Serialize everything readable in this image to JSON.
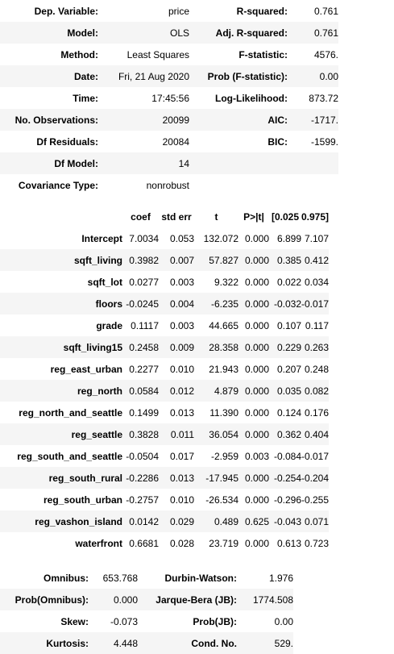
{
  "header_table": {
    "rows": [
      [
        {
          "label": "Dep. Variable:",
          "value": "price"
        },
        {
          "label": "R-squared:",
          "value": "0.761"
        }
      ],
      [
        {
          "label": "Model:",
          "value": "OLS"
        },
        {
          "label": "Adj. R-squared:",
          "value": "0.761"
        }
      ],
      [
        {
          "label": "Method:",
          "value": "Least Squares"
        },
        {
          "label": "F-statistic:",
          "value": "4576."
        }
      ],
      [
        {
          "label": "Date:",
          "value": "Fri, 21 Aug 2020"
        },
        {
          "label": "Prob (F-statistic):",
          "value": "0.00"
        }
      ],
      [
        {
          "label": "Time:",
          "value": "17:45:56"
        },
        {
          "label": "Log-Likelihood:",
          "value": "873.72"
        }
      ],
      [
        {
          "label": "No. Observations:",
          "value": "20099"
        },
        {
          "label": "AIC:",
          "value": "-1717."
        }
      ],
      [
        {
          "label": "Df Residuals:",
          "value": "20084"
        },
        {
          "label": "BIC:",
          "value": "-1599."
        }
      ],
      [
        {
          "label": "Df Model:",
          "value": "14"
        },
        {
          "label": "",
          "value": ""
        }
      ],
      [
        {
          "label": "Covariance Type:",
          "value": "nonrobust"
        },
        {
          "label": "",
          "value": ""
        }
      ]
    ]
  },
  "coef_table": {
    "headers": [
      "",
      "coef",
      "std err",
      "t",
      "P>|t|",
      "[0.025",
      "0.975]"
    ],
    "rows": [
      {
        "name": "Intercept",
        "values": [
          "7.0034",
          "0.053",
          "132.072",
          "0.000",
          "6.899",
          "7.107"
        ]
      },
      {
        "name": "sqft_living",
        "values": [
          "0.3982",
          "0.007",
          "57.827",
          "0.000",
          "0.385",
          "0.412"
        ]
      },
      {
        "name": "sqft_lot",
        "values": [
          "0.0277",
          "0.003",
          "9.322",
          "0.000",
          "0.022",
          "0.034"
        ]
      },
      {
        "name": "floors",
        "values": [
          "-0.0245",
          "0.004",
          "-6.235",
          "0.000",
          "-0.032",
          "-0.017"
        ]
      },
      {
        "name": "grade",
        "values": [
          "0.1117",
          "0.003",
          "44.665",
          "0.000",
          "0.107",
          "0.117"
        ]
      },
      {
        "name": "sqft_living15",
        "values": [
          "0.2458",
          "0.009",
          "28.358",
          "0.000",
          "0.229",
          "0.263"
        ]
      },
      {
        "name": "reg_east_urban",
        "values": [
          "0.2277",
          "0.010",
          "21.943",
          "0.000",
          "0.207",
          "0.248"
        ]
      },
      {
        "name": "reg_north",
        "values": [
          "0.0584",
          "0.012",
          "4.879",
          "0.000",
          "0.035",
          "0.082"
        ]
      },
      {
        "name": "reg_north_and_seattle",
        "values": [
          "0.1499",
          "0.013",
          "11.390",
          "0.000",
          "0.124",
          "0.176"
        ]
      },
      {
        "name": "reg_seattle",
        "values": [
          "0.3828",
          "0.011",
          "36.054",
          "0.000",
          "0.362",
          "0.404"
        ]
      },
      {
        "name": "reg_south_and_seattle",
        "values": [
          "-0.0504",
          "0.017",
          "-2.959",
          "0.003",
          "-0.084",
          "-0.017"
        ]
      },
      {
        "name": "reg_south_rural",
        "values": [
          "-0.2286",
          "0.013",
          "-17.945",
          "0.000",
          "-0.254",
          "-0.204"
        ]
      },
      {
        "name": "reg_south_urban",
        "values": [
          "-0.2757",
          "0.010",
          "-26.534",
          "0.000",
          "-0.296",
          "-0.255"
        ]
      },
      {
        "name": "reg_vashon_island",
        "values": [
          "0.0142",
          "0.029",
          "0.489",
          "0.625",
          "-0.043",
          "0.071"
        ]
      },
      {
        "name": "waterfront",
        "values": [
          "0.6681",
          "0.028",
          "23.719",
          "0.000",
          "0.613",
          "0.723"
        ]
      }
    ]
  },
  "diag_table": {
    "rows": [
      [
        {
          "label": "Omnibus:",
          "value": "653.768"
        },
        {
          "label": "Durbin-Watson:",
          "value": "1.976"
        }
      ],
      [
        {
          "label": "Prob(Omnibus):",
          "value": "0.000"
        },
        {
          "label": "Jarque-Bera (JB):",
          "value": "1774.508"
        }
      ],
      [
        {
          "label": "Skew:",
          "value": "-0.073"
        },
        {
          "label": "Prob(JB):",
          "value": "0.00"
        }
      ],
      [
        {
          "label": "Kurtosis:",
          "value": "4.448"
        },
        {
          "label": "Cond. No.",
          "value": "529."
        }
      ]
    ]
  }
}
